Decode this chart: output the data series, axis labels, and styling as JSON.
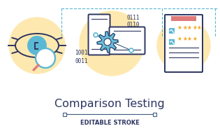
{
  "bg_color": "#ffffff",
  "circle_color": "#fde9b0",
  "dark_blue": "#2d3561",
  "mid_blue": "#3d5a80",
  "light_blue": "#5bb8d4",
  "pink_red": "#e07b7b",
  "star_color": "#f5a623",
  "title": "Comparison Testing",
  "subtitle": "EDITABLE STROKE",
  "title_color": "#2d3561",
  "subtitle_color": "#2d3561",
  "binary_left": [
    [
      "1001",
      107,
      78
    ],
    [
      "0011",
      107,
      90
    ]
  ],
  "binary_right": [
    [
      "0111",
      182,
      28
    ],
    [
      "0110",
      182,
      38
    ]
  ]
}
